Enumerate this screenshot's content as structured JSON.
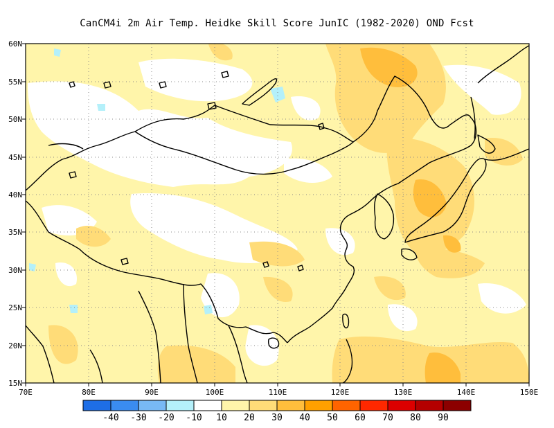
{
  "title": "CanCM4i  2m Air Temp. Heidke Skill Score JunIC (1982-2020) OND Fcst",
  "map": {
    "lon_range": [
      70,
      150
    ],
    "lat_range": [
      15,
      60
    ],
    "lat_labels": [
      "15N",
      "20N",
      "25N",
      "30N",
      "35N",
      "40N",
      "45N",
      "50N",
      "55N",
      "60N"
    ],
    "lon_labels": [
      "70E",
      "80E",
      "90E",
      "100E",
      "110E",
      "120E",
      "130E",
      "140E",
      "150E"
    ],
    "gridlines": "dotted"
  },
  "colorbar": {
    "labels": [
      "-40",
      "-30",
      "-20",
      "-10",
      "10",
      "20",
      "30",
      "40",
      "50",
      "60",
      "70",
      "80",
      "90"
    ],
    "colors": [
      "#1e6ee6",
      "#3a8cf0",
      "#78b9f5",
      "#b4f0fa",
      "#ffffff",
      "#fff5aa",
      "#ffdc78",
      "#ffbe3c",
      "#ffa000",
      "#ff6400",
      "#ff2800",
      "#dc0000",
      "#b40000",
      "#8c0000"
    ]
  },
  "colors": {
    "light_yellow": "#fff5aa",
    "yellow": "#ffdc78",
    "orange": "#ffbe3c",
    "cyan": "#b4f0fa",
    "coast": "#000000"
  }
}
